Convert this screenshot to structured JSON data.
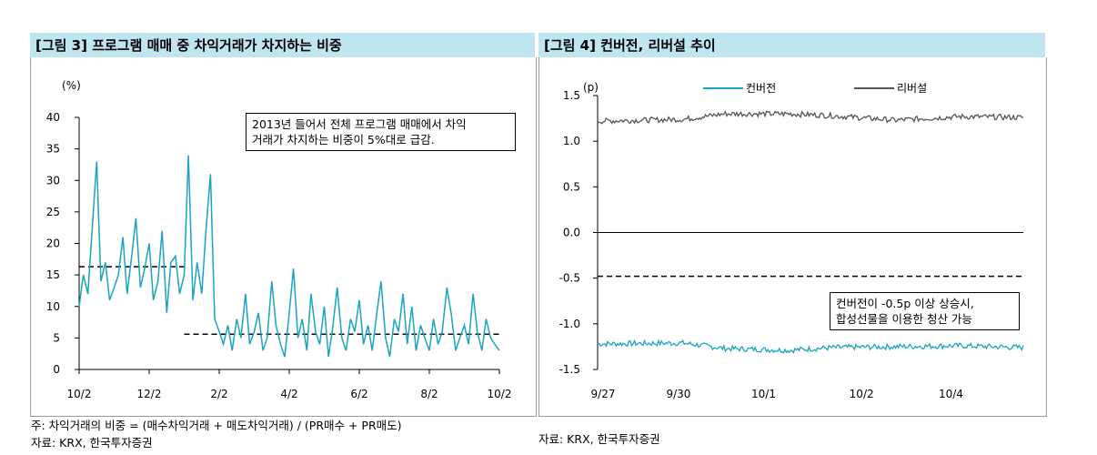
{
  "charts": [
    {
      "heading": "[그림 3] 프로그램 매매 중 차익거래가 차지하는 비중",
      "unit": "(%)",
      "annotation": [
        "2013년 들어서 전체 프로그램 매매에서 차익",
        "거래가 차지하는 비중이 5%대로 급감."
      ],
      "footnote": "주: 차익거래의 비중 = (매수차익거래 + 매도차익거래) / (PR매수 + PR매도)",
      "source": "자료: KRX, 한국투자증권"
    },
    {
      "heading": "[그림 4] 컨버전, 리버설 추이",
      "unit": "(p)",
      "annotation": [
        "컨버전이 -0.5p 이상 상승시,",
        "합성선물을 이용한 청산 가능"
      ],
      "source": "자료: KRX, 한국투자증권"
    }
  ],
  "chart_data": [
    {
      "type": "line",
      "ylim": [
        0,
        40
      ],
      "yticks": [
        0,
        5,
        10,
        15,
        20,
        25,
        30,
        35,
        40
      ],
      "x_tick_labels": [
        "10/2",
        "12/2",
        "2/2",
        "4/2",
        "6/2",
        "8/2",
        "10/2"
      ],
      "series": [
        {
          "color": "#1aa3c2",
          "x_months": [
            0,
            0.12,
            0.25,
            0.37,
            0.5,
            0.62,
            0.75,
            0.87,
            1,
            1.12,
            1.25,
            1.37,
            1.5,
            1.62,
            1.75,
            1.87,
            2,
            2.12,
            2.25,
            2.37,
            2.5,
            2.62,
            2.75,
            2.87,
            3,
            3.12,
            3.25,
            3.37,
            3.5,
            3.62,
            3.75,
            3.87,
            4,
            4.12,
            4.25,
            4.37,
            4.5,
            4.62,
            4.75,
            4.87,
            5,
            5.12,
            5.25,
            5.37,
            5.5,
            5.62,
            5.75,
            5.87,
            6,
            6.12,
            6.25,
            6.37,
            6.5,
            6.62,
            6.75,
            6.87,
            7,
            7.12,
            7.25,
            7.37,
            7.5,
            7.62,
            7.75,
            7.87,
            8,
            8.12,
            8.25,
            8.37,
            8.5,
            8.62,
            8.75,
            8.87,
            9,
            9.12,
            9.25,
            9.37,
            9.5,
            9.62,
            9.75,
            9.87,
            10,
            10.12,
            10.25,
            10.37,
            10.5,
            10.62,
            10.75,
            10.87,
            11,
            11.12,
            11.25,
            11.37,
            11.5,
            11.62,
            11.75,
            11.87,
            12
          ],
          "y": [
            10,
            15,
            12,
            22,
            33,
            14,
            17,
            11,
            13,
            15,
            21,
            12,
            18,
            24,
            13,
            16,
            20,
            11,
            14,
            22,
            9,
            17,
            18,
            12,
            15,
            34,
            11,
            17,
            12,
            22,
            31,
            8,
            6,
            4,
            7,
            3,
            8,
            5,
            12,
            4,
            6,
            9,
            3,
            5,
            14,
            7,
            4,
            2,
            9,
            16,
            5,
            8,
            3,
            12,
            6,
            4,
            10,
            2,
            7,
            13,
            5,
            3,
            8,
            6,
            11,
            4,
            7,
            3,
            9,
            14,
            5,
            2,
            8,
            6,
            12,
            4,
            10,
            3,
            7,
            5,
            3,
            8,
            4,
            6,
            13,
            9,
            3,
            5,
            7,
            4,
            12,
            6,
            3,
            8,
            5,
            4,
            3
          ]
        }
      ],
      "reference_lines": [
        {
          "y": 16.3,
          "x_from_month": 0,
          "x_to_month": 3,
          "style": "dashed"
        },
        {
          "y": 5.6,
          "x_from_month": 3,
          "x_to_month": 12,
          "style": "dashed"
        }
      ]
    },
    {
      "type": "line",
      "ylim": [
        -1.5,
        1.5
      ],
      "yticks": [
        -1.5,
        -1.0,
        -0.5,
        0.0,
        0.5,
        1.0,
        1.5
      ],
      "ytick_labels": [
        "-1.5",
        "-1.0",
        "-0.5",
        "0.0",
        "0.5",
        "1.0",
        "1.5"
      ],
      "x_tick_labels": [
        "9/27",
        "9/30",
        "10/1",
        "10/2",
        "10/4"
      ],
      "legend_position": "top",
      "series": [
        {
          "name": "컨버전",
          "color": "#1aa3c2",
          "points_t": [
            0,
            0.2,
            0.3,
            0.45,
            0.55,
            0.7,
            0.85,
            1
          ],
          "points_v": [
            -1.22,
            -1.21,
            -1.27,
            -1.29,
            -1.26,
            -1.25,
            -1.24,
            -1.26
          ],
          "noise": 0.03
        },
        {
          "name": "리버설",
          "color": "#555555",
          "points_t": [
            0,
            0.2,
            0.3,
            0.45,
            0.55,
            0.7,
            0.85,
            1
          ],
          "points_v": [
            1.22,
            1.24,
            1.3,
            1.3,
            1.28,
            1.23,
            1.27,
            1.26
          ],
          "noise": 0.03
        }
      ],
      "reference_lines": [
        {
          "y": 0.0,
          "style": "solid"
        },
        {
          "y": -0.48,
          "style": "dashed"
        }
      ]
    }
  ]
}
